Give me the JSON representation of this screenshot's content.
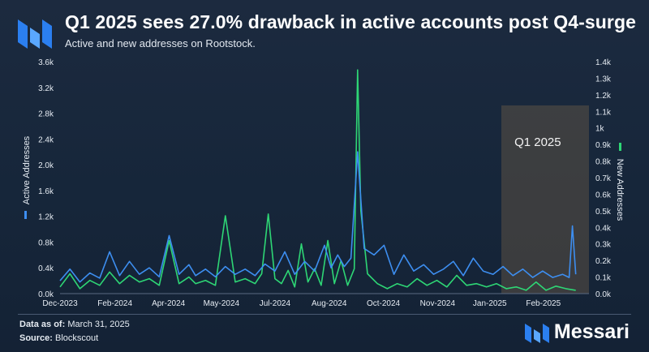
{
  "title": "Q1 2025 sees 27.0% drawback in active accounts post Q4-surge",
  "subtitle": "Active and new addresses on Rootstock.",
  "footer": {
    "data_as_of_label": "Data as of:",
    "data_as_of_value": "March 31, 2025",
    "source_label": "Source:",
    "source_value": "Blockscout"
  },
  "brand": {
    "name": "Messari"
  },
  "chart_data": {
    "type": "line",
    "x_tick_labels": [
      "Dec-2023",
      "Feb-2024",
      "Apr-2024",
      "May-2024",
      "Jul-2024",
      "Aug-2024",
      "Oct-2024",
      "Nov-2024",
      "Jan-2025",
      "Feb-2025"
    ],
    "y_left": {
      "label": "Active Addresses",
      "ticks": [
        "0.0k",
        "0.4k",
        "0.8k",
        "1.2k",
        "1.6k",
        "2.0k",
        "2.4k",
        "2.8k",
        "3.2k",
        "3.6k"
      ],
      "range": [
        0,
        3600
      ]
    },
    "y_right": {
      "label": "New Addresses",
      "ticks": [
        "0.0k",
        "0.1k",
        "0.2k",
        "0.3k",
        "0.4k",
        "0.5k",
        "0.6k",
        "0.7k",
        "0.8k",
        "0.9k",
        "1k",
        "1.1k",
        "1.2k",
        "1.3k",
        "1.4k"
      ],
      "range": [
        0,
        1400
      ]
    },
    "highlight": {
      "label": "Q1 2025",
      "start": "Jan-2025",
      "end": "Mar-2025"
    },
    "grid": false,
    "colors": {
      "active": "#3d8ef0",
      "new": "#2ed675",
      "highlight": "#6b5a47"
    },
    "x_range": [
      0,
      16
    ],
    "series": [
      {
        "name": "Active Addresses",
        "axis": "left",
        "x": [
          0,
          0.3,
          0.6,
          0.9,
          1.2,
          1.5,
          1.8,
          2.1,
          2.4,
          2.7,
          3.0,
          3.3,
          3.6,
          3.9,
          4.1,
          4.4,
          4.7,
          5.0,
          5.3,
          5.6,
          5.9,
          6.2,
          6.5,
          6.8,
          7.1,
          7.4,
          7.7,
          8.0,
          8.2,
          8.4,
          8.6,
          8.8,
          9.0,
          9.2,
          9.5,
          9.8,
          10.1,
          10.4,
          10.7,
          11.0,
          11.3,
          11.6,
          11.9,
          12.2,
          12.5,
          12.8,
          13.1,
          13.4,
          13.7,
          14.0,
          14.3,
          14.6,
          14.9,
          15.2,
          15.4,
          15.5,
          15.6
        ],
        "y": [
          200,
          380,
          180,
          320,
          240,
          650,
          280,
          500,
          300,
          400,
          260,
          900,
          300,
          450,
          280,
          380,
          260,
          420,
          300,
          380,
          280,
          460,
          350,
          650,
          300,
          500,
          350,
          750,
          400,
          600,
          420,
          550,
          2200,
          700,
          600,
          750,
          300,
          600,
          350,
          450,
          300,
          380,
          500,
          280,
          550,
          350,
          300,
          420,
          280,
          380,
          250,
          350,
          250,
          300,
          250,
          1050,
          300
        ]
      },
      {
        "name": "New Addresses",
        "axis": "right",
        "x": [
          0,
          0.3,
          0.6,
          0.9,
          1.2,
          1.5,
          1.8,
          2.1,
          2.4,
          2.7,
          3.0,
          3.3,
          3.6,
          3.9,
          4.1,
          4.4,
          4.7,
          5.0,
          5.3,
          5.6,
          5.9,
          6.1,
          6.3,
          6.5,
          6.7,
          6.9,
          7.1,
          7.3,
          7.5,
          7.7,
          7.9,
          8.1,
          8.3,
          8.5,
          8.7,
          8.9,
          9.0,
          9.1,
          9.3,
          9.6,
          9.9,
          10.2,
          10.5,
          10.8,
          11.1,
          11.4,
          11.7,
          12.0,
          12.3,
          12.6,
          12.9,
          13.2,
          13.5,
          13.8,
          14.1,
          14.4,
          14.7,
          15.0,
          15.3,
          15.6
        ],
        "y": [
          40,
          120,
          30,
          80,
          50,
          130,
          60,
          110,
          70,
          90,
          50,
          320,
          60,
          100,
          60,
          80,
          50,
          470,
          70,
          90,
          60,
          120,
          480,
          90,
          60,
          140,
          40,
          300,
          70,
          150,
          50,
          320,
          60,
          200,
          50,
          150,
          1350,
          500,
          120,
          60,
          30,
          60,
          40,
          90,
          50,
          80,
          40,
          110,
          50,
          60,
          40,
          60,
          30,
          40,
          20,
          70,
          20,
          45,
          30,
          20
        ]
      }
    ]
  }
}
